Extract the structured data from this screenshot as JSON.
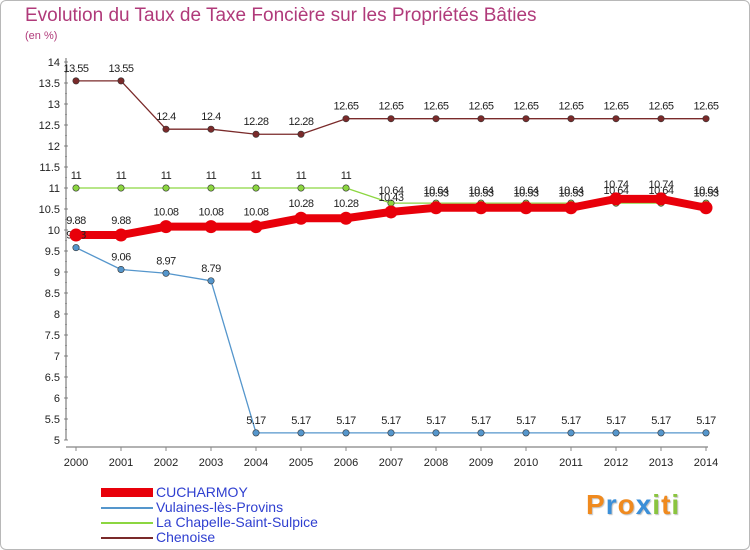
{
  "title": "Evolution du Taux de Taxe Foncière sur les Propriétés Bâties",
  "unit_label": "(en %)",
  "brand": {
    "letters": [
      "P",
      "r",
      "o",
      "x",
      "i",
      "t",
      "i"
    ],
    "colors": [
      "#f08a1e",
      "#3b8fd8",
      "#f08a1e",
      "#3b8fd8",
      "#8ac43f",
      "#f08a1e",
      "#8ac43f"
    ]
  },
  "chart_data": {
    "type": "line",
    "title": "Evolution du Taux de Taxe Foncière sur les Propriétés Bâties",
    "ylabel": "(en %)",
    "xlabel": "",
    "ylim": [
      5,
      14
    ],
    "y_ticks": [
      "5",
      "5.5",
      "6",
      "6.5",
      "7",
      "7.5",
      "8",
      "8.5",
      "9",
      "9.5",
      "10",
      "10.5",
      "11",
      "11.5",
      "12",
      "12.5",
      "13",
      "13.5",
      "14"
    ],
    "x": [
      "2000",
      "2001",
      "2002",
      "2003",
      "2004",
      "2005",
      "2006",
      "2007",
      "2008",
      "2009",
      "2010",
      "2011",
      "2012",
      "2013",
      "2014"
    ],
    "legend_position": "bottom-left",
    "series": [
      {
        "name": "Chenoise",
        "color": "#7a2a2a",
        "width": 1.3,
        "values": [
          13.55,
          13.55,
          12.4,
          12.4,
          12.28,
          12.28,
          12.65,
          12.65,
          12.65,
          12.65,
          12.65,
          12.65,
          12.65,
          12.65,
          12.65
        ],
        "labels": [
          "13.55",
          "13.55",
          "12.4",
          "12.4",
          "12.28",
          "12.28",
          "12.65",
          "12.65",
          "12.65",
          "12.65",
          "12.65",
          "12.65",
          "12.65",
          "12.65",
          "12.65"
        ]
      },
      {
        "name": "La Chapelle-Saint-Sulpice",
        "color": "#8cd640",
        "width": 1.3,
        "values": [
          11,
          11,
          11,
          11,
          11,
          11,
          11,
          10.64,
          10.64,
          10.64,
          10.64,
          10.64,
          10.64,
          10.64,
          10.64
        ],
        "labels": [
          "11",
          "11",
          "11",
          "11",
          "11",
          "11",
          "11",
          "10.64",
          "10.64",
          "10.64",
          "10.64",
          "10.64",
          "10.64",
          "10.64",
          "10.64"
        ]
      },
      {
        "name": "Vulaines-lès-Provins",
        "color": "#5596cc",
        "width": 1.3,
        "values": [
          9.58,
          9.06,
          8.97,
          8.79,
          5.17,
          5.17,
          5.17,
          5.17,
          5.17,
          5.17,
          5.17,
          5.17,
          5.17,
          5.17,
          5.17
        ],
        "labels": [
          "9.58",
          "9.06",
          "8.97",
          "8.79",
          "5.17",
          "5.17",
          "5.17",
          "5.17",
          "5.17",
          "5.17",
          "5.17",
          "5.17",
          "5.17",
          "5.17",
          "5.17"
        ]
      },
      {
        "name": "CUCHARMOY",
        "color": "#e8000a",
        "width": 8,
        "values": [
          9.88,
          9.88,
          10.08,
          10.08,
          10.08,
          10.28,
          10.28,
          10.43,
          10.53,
          10.53,
          10.53,
          10.53,
          10.74,
          10.74,
          10.53
        ],
        "labels": [
          "9.88",
          "9.88",
          "10.08",
          "10.08",
          "10.08",
          "10.28",
          "10.28",
          "10.43",
          "10.53",
          "10.53",
          "10.53",
          "10.53",
          "10.74",
          "10.74",
          "10.53"
        ]
      }
    ],
    "legend_order": [
      "CUCHARMOY",
      "Vulaines-lès-Provins",
      "La Chapelle-Saint-Sulpice",
      "Chenoise"
    ]
  }
}
